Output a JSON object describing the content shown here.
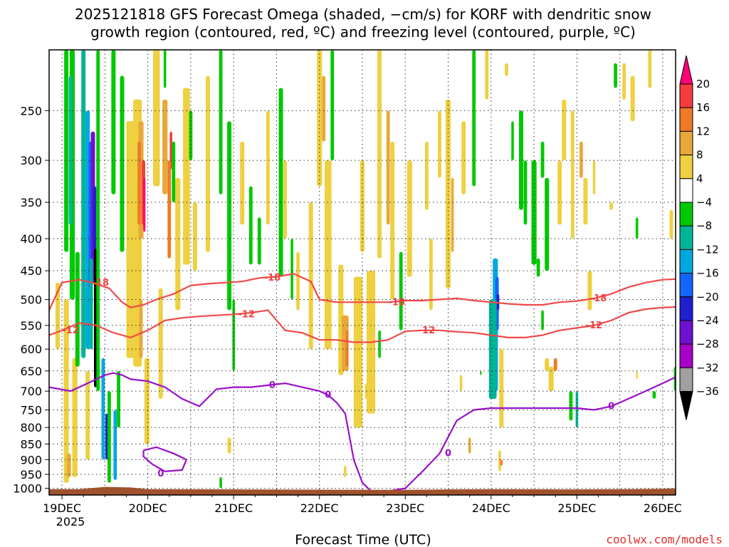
{
  "chart_data": {
    "type": "time-height cross section",
    "title_line1": "2025121818 GFS Forecast Omega (shaded, −cm/s) for KORF with dendritic snow",
    "title_line2": "growth region (contoured, red, ºC) and freezing level (contoured, purple, ºC)",
    "xlabel": "Forecast Time (UTC)",
    "credit": "coolwx.com/models",
    "x_ticks": [
      "19DEC",
      "20DEC",
      "21DEC",
      "22DEC",
      "23DEC",
      "24DEC",
      "25DEC",
      "26DEC"
    ],
    "x_year": "2025",
    "x_range_days": [
      -0.15,
      7.15
    ],
    "y_ticks": [
      "250",
      "300",
      "350",
      "400",
      "450",
      "500",
      "550",
      "600",
      "650",
      "700",
      "750",
      "800",
      "850",
      "900",
      "950",
      "1000"
    ],
    "y_range_hpa": [
      200,
      1025
    ],
    "colorbar": {
      "labels": [
        "20",
        "16",
        "12",
        "8",
        "4",
        "−4",
        "−8",
        "−12",
        "−16",
        "−20",
        "−24",
        "−28",
        "−32",
        "−36"
      ],
      "colors": [
        "#ff0078",
        "#f53c3c",
        "#ee7a28",
        "#e8a838",
        "#eed040",
        "#ffffff",
        "#00c800",
        "#00b498",
        "#00a8e0",
        "#1464ff",
        "#2020d0",
        "#7010d0",
        "#a800c8",
        "#a0a0a0",
        "#000000"
      ]
    },
    "contours": {
      "minus18": {
        "label": "-18",
        "color": "#f04848",
        "days": [
          -0.15,
          0,
          0.2,
          0.35,
          0.55,
          0.7,
          0.8,
          0.95,
          1.1,
          1.3,
          1.5,
          1.7,
          1.9,
          2.1,
          2.3,
          2.5,
          2.7,
          2.9,
          3.0,
          3.2,
          3.4,
          3.6,
          3.8,
          4.0,
          4.2,
          4.4,
          4.6,
          4.8,
          5.0,
          5.2,
          5.4,
          5.6,
          5.8,
          6.0,
          6.2,
          6.4,
          6.6,
          6.8,
          7.0,
          7.15
        ],
        "hpa": [
          520,
          470,
          465,
          470,
          480,
          505,
          515,
          510,
          500,
          490,
          475,
          472,
          470,
          468,
          462,
          460,
          455,
          468,
          500,
          505,
          505,
          505,
          505,
          502,
          502,
          500,
          498,
          502,
          505,
          508,
          510,
          510,
          505,
          503,
          498,
          490,
          478,
          470,
          465,
          464
        ]
      },
      "minus12": {
        "label": "-12",
        "color": "#f04848",
        "days": [
          -0.15,
          0,
          0.2,
          0.4,
          0.6,
          0.8,
          1.0,
          1.2,
          1.4,
          1.6,
          1.8,
          2.0,
          2.2,
          2.4,
          2.6,
          2.8,
          3.0,
          3.2,
          3.4,
          3.6,
          3.8,
          4.0,
          4.2,
          4.4,
          4.6,
          4.8,
          5.0,
          5.2,
          5.4,
          5.6,
          5.8,
          6.0,
          6.2,
          6.4,
          6.6,
          6.8,
          7.0,
          7.15
        ],
        "hpa": [
          570,
          560,
          545,
          550,
          565,
          575,
          560,
          540,
          535,
          532,
          530,
          528,
          525,
          520,
          560,
          565,
          580,
          580,
          585,
          585,
          580,
          562,
          560,
          560,
          563,
          565,
          570,
          575,
          575,
          570,
          560,
          555,
          550,
          540,
          525,
          518,
          515,
          514
        ]
      },
      "freezing0": {
        "label": "0",
        "color": "#9a10c8",
        "days": [
          -0.15,
          0.1,
          0.3,
          0.5,
          0.6,
          0.7,
          0.8,
          1.0,
          1.2,
          1.4,
          1.6,
          1.8,
          2.0,
          2.2,
          2.4,
          2.6,
          2.8,
          3.0,
          3.1,
          3.2,
          3.3,
          3.4,
          3.5,
          3.6,
          3.7,
          3.8,
          4.0,
          4.2,
          4.4,
          4.6,
          4.8,
          5.0,
          5.2,
          5.4,
          5.6,
          5.8,
          6.0,
          6.2,
          6.4,
          6.6,
          6.8,
          7.0,
          7.15
        ],
        "hpa": [
          690,
          700,
          680,
          660,
          655,
          660,
          670,
          675,
          690,
          720,
          740,
          695,
          690,
          690,
          685,
          680,
          690,
          700,
          710,
          730,
          760,
          900,
          980,
          1010,
          1015,
          1010,
          1000,
          940,
          880,
          780,
          750,
          745,
          745,
          745,
          745,
          745,
          745,
          750,
          740,
          720,
          700,
          680,
          665
        ]
      }
    }
  }
}
